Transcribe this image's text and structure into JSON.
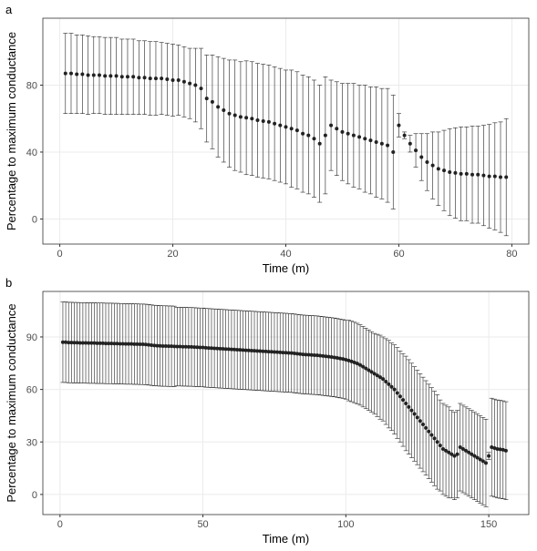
{
  "chart_data": [
    {
      "type": "scatter",
      "panel": "a",
      "x_label": "Time (m)",
      "y_label": "Percentage to maximum conductance",
      "color": "#222222",
      "grid": true,
      "xlim": [
        -3,
        83
      ],
      "ylim": [
        -15,
        120
      ],
      "xticks": [
        0,
        20,
        40,
        60,
        80
      ],
      "yticks": [
        0,
        40,
        80
      ],
      "x": [
        1,
        2,
        3,
        4,
        5,
        6,
        7,
        8,
        9,
        10,
        11,
        12,
        13,
        14,
        15,
        16,
        17,
        18,
        19,
        20,
        21,
        22,
        23,
        24,
        25,
        26,
        27,
        28,
        29,
        30,
        31,
        32,
        33,
        34,
        35,
        36,
        37,
        38,
        39,
        40,
        41,
        42,
        43,
        44,
        45,
        46,
        47,
        48,
        49,
        50,
        51,
        52,
        53,
        54,
        55,
        56,
        57,
        58,
        59,
        60,
        61,
        62,
        63,
        64,
        65,
        66,
        67,
        68,
        69,
        70,
        71,
        72,
        73,
        74,
        75,
        76,
        77,
        78,
        79
      ],
      "values": [
        87,
        87,
        86.5,
        86.5,
        86,
        86,
        86,
        85.5,
        85.5,
        85.5,
        85,
        85,
        85,
        84.5,
        84.5,
        84,
        84,
        84,
        83.5,
        83,
        83,
        82,
        81,
        80,
        78,
        72,
        70,
        67,
        65,
        63,
        62,
        61,
        60.5,
        60,
        59,
        58.5,
        58,
        57,
        56,
        55,
        54,
        53,
        51,
        50,
        48,
        45,
        50,
        56,
        54,
        52,
        51,
        50,
        49,
        48,
        47,
        46,
        45,
        44,
        40,
        56,
        50,
        45,
        41,
        37,
        34,
        32,
        30,
        29,
        28,
        27.5,
        27,
        27,
        26.5,
        26.5,
        26,
        25.5,
        25.5,
        25,
        25
      ],
      "errors": [
        24,
        24,
        23.5,
        23.5,
        23.5,
        23,
        23,
        23,
        23,
        23,
        22.5,
        22.5,
        22.5,
        22,
        22,
        22,
        22,
        21.5,
        21.5,
        21.5,
        21,
        21,
        21,
        22,
        24,
        26,
        28,
        30,
        31,
        32,
        33,
        33,
        34,
        34,
        34,
        34,
        34,
        34,
        34,
        34,
        35,
        35,
        35,
        35,
        35,
        35,
        35,
        27,
        28,
        29,
        30,
        31,
        31,
        32,
        32,
        33,
        33,
        34,
        34,
        7,
        2,
        5,
        10,
        14,
        17,
        20,
        22,
        24,
        26,
        27,
        28,
        28,
        29,
        29,
        30,
        31,
        32,
        33,
        35
      ]
    },
    {
      "type": "scatter",
      "panel": "b",
      "x_label": "Time (m)",
      "y_label": "Percentage to maximum conductance",
      "color": "#222222",
      "grid": true,
      "xlim": [
        -6,
        164
      ],
      "ylim": [
        -11.5,
        116
      ],
      "xticks": [
        0,
        50,
        100,
        150
      ],
      "yticks": [
        0,
        30,
        60,
        90
      ],
      "x": [
        1,
        2,
        3,
        4,
        5,
        6,
        7,
        8,
        9,
        10,
        11,
        12,
        13,
        14,
        15,
        16,
        17,
        18,
        19,
        20,
        21,
        22,
        23,
        24,
        25,
        26,
        27,
        28,
        29,
        30,
        31,
        32,
        33,
        34,
        35,
        36,
        37,
        38,
        39,
        40,
        41,
        42,
        43,
        44,
        45,
        46,
        47,
        48,
        49,
        50,
        51,
        52,
        53,
        54,
        55,
        56,
        57,
        58,
        59,
        60,
        61,
        62,
        63,
        64,
        65,
        66,
        67,
        68,
        69,
        70,
        71,
        72,
        73,
        74,
        75,
        76,
        77,
        78,
        79,
        80,
        81,
        82,
        83,
        84,
        85,
        86,
        87,
        88,
        89,
        90,
        91,
        92,
        93,
        94,
        95,
        96,
        97,
        98,
        99,
        100,
        101,
        102,
        103,
        104,
        105,
        106,
        107,
        108,
        109,
        110,
        111,
        112,
        113,
        114,
        115,
        116,
        117,
        118,
        119,
        120,
        121,
        122,
        123,
        124,
        125,
        126,
        127,
        128,
        129,
        130,
        131,
        132,
        133,
        134,
        135,
        136,
        137,
        138,
        139,
        140,
        141,
        142,
        143,
        144,
        145,
        146,
        147,
        148,
        149,
        150,
        151,
        152,
        153,
        154,
        155,
        156
      ],
      "values": [
        87,
        87,
        86.8,
        86.8,
        86.7,
        86.7,
        86.6,
        86.6,
        86.6,
        86.5,
        86.5,
        86.5,
        86.4,
        86.4,
        86.4,
        86.3,
        86.3,
        86.3,
        86.2,
        86.2,
        86.1,
        86.1,
        86,
        86,
        86,
        85.9,
        85.9,
        85.8,
        85.8,
        85.7,
        85.5,
        85.3,
        85.1,
        85,
        84.9,
        84.8,
        84.8,
        84.7,
        84.7,
        84.6,
        84.5,
        84.5,
        84.4,
        84.4,
        84.3,
        84.3,
        84.2,
        84.1,
        84,
        84,
        83.8,
        83.7,
        83.6,
        83.5,
        83.4,
        83.3,
        83.2,
        83.1,
        83,
        82.9,
        82.8,
        82.7,
        82.6,
        82.5,
        82.4,
        82.3,
        82.2,
        82.1,
        82,
        81.9,
        81.8,
        81.7,
        81.6,
        81.5,
        81.4,
        81.3,
        81.2,
        81.1,
        81,
        80.9,
        80.8,
        80.6,
        80.4,
        80.2,
        80,
        79.9,
        79.8,
        79.7,
        79.6,
        79.5,
        79.3,
        79.1,
        78.9,
        78.7,
        78.5,
        78.3,
        78,
        77.7,
        77.4,
        77,
        76.5,
        76,
        75.4,
        74.8,
        74,
        73,
        72,
        71,
        70,
        69,
        68,
        67,
        66,
        64.5,
        63,
        61.5,
        60,
        58,
        56,
        54,
        52,
        50,
        48,
        46,
        44,
        42,
        40,
        38,
        36,
        34,
        32,
        30,
        28,
        26,
        25,
        24,
        23,
        22,
        23,
        27,
        26,
        25,
        24,
        23,
        22,
        21,
        20,
        19,
        18,
        22,
        27,
        26.5,
        26,
        25.8,
        25.5,
        25
      ],
      "errors": [
        23,
        23,
        23,
        23,
        23,
        23,
        23,
        23,
        23,
        23,
        23,
        23,
        23,
        23,
        23,
        23,
        23,
        23,
        23,
        23,
        23,
        23,
        23,
        23,
        23,
        23,
        23,
        23,
        23,
        23,
        23,
        23,
        23,
        23,
        23,
        23,
        23,
        23,
        23,
        23,
        22.5,
        22.5,
        22.5,
        22.5,
        22.5,
        22.5,
        22.5,
        22.5,
        22.5,
        22.5,
        22.5,
        22.5,
        22.5,
        22.5,
        22.5,
        22.5,
        22.5,
        22.5,
        22.5,
        22.5,
        22.5,
        22.5,
        22.5,
        22.5,
        22.5,
        22.5,
        22.5,
        22.5,
        22.5,
        22.5,
        22.5,
        22.5,
        22.5,
        22.5,
        22.5,
        22.5,
        22.5,
        22.5,
        22.5,
        22.5,
        22.5,
        22.5,
        22.5,
        22.5,
        22.5,
        22.5,
        22.5,
        22.5,
        22.5,
        22.5,
        22.5,
        22.5,
        22.5,
        22.5,
        22.5,
        22.5,
        22.5,
        22.5,
        22.5,
        22.5,
        23,
        23,
        23,
        23,
        23,
        23,
        23,
        23,
        23,
        23,
        23.5,
        24,
        24,
        24.5,
        25,
        25,
        25.5,
        26,
        26,
        26.5,
        27,
        27,
        27,
        27,
        27,
        27,
        27,
        27,
        27,
        27,
        27,
        27,
        26,
        26,
        26,
        26,
        25,
        25,
        25,
        25,
        25,
        25,
        25,
        25,
        25,
        25,
        25,
        25,
        25,
        2,
        28,
        28,
        28,
        28,
        28,
        28
      ]
    }
  ]
}
